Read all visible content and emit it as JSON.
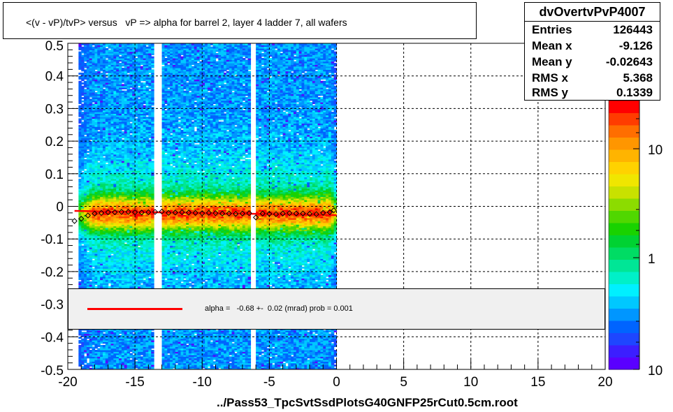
{
  "title": "<(v - vP)/tvP> versus   vP => alpha for barrel 2, layer 4 ladder 7, all wafers",
  "stats": {
    "name": "dvOvertvPvP4007",
    "rows": [
      {
        "label": "Entries",
        "value": "126443"
      },
      {
        "label": "Mean x",
        "value": "-9.126"
      },
      {
        "label": "Mean y",
        "value": "-0.02643"
      },
      {
        "label": "RMS x",
        "value": "5.368"
      },
      {
        "label": "RMS y",
        "value": "0.1339"
      }
    ]
  },
  "legend": {
    "text": "alpha =   -0.68 +-  0.02 (mrad) prob = 0.001",
    "line_color": "#ff0000"
  },
  "xlabel": "../Pass53_TpcSvtSsdPlotsG40GNFP25rCut0.5cm.root",
  "chart_data": {
    "type": "heatmap",
    "title": "<(v - vP)/tvP> versus   vP => alpha for barrel 2, layer 4 ladder 7, all wafers",
    "xlabel": "../Pass53_TpcSvtSsdPlotsG40GNFP25rCut0.5cm.root",
    "ylabel": "",
    "xlim": [
      -20,
      20
    ],
    "ylim": [
      -0.5,
      0.5
    ],
    "x_ticks": [
      "-20",
      "-15",
      "-10",
      "-5",
      "0",
      "5",
      "10",
      "15",
      "20"
    ],
    "y_ticks": [
      "-0.5",
      "-0.4",
      "-0.3",
      "-0.2",
      "-0.1",
      "0",
      "0.1",
      "0.2",
      "0.3",
      "0.4",
      "0.5"
    ],
    "z_scale": "log",
    "z_ticks": [
      "1",
      "10",
      "10"
    ],
    "grid": true,
    "filled_x_range": [
      -19.2,
      0
    ],
    "gap_x_values": [
      -13.3,
      -6.2
    ],
    "band_center_y": -0.02,
    "profile_points": {
      "x": [
        -19.5,
        -19.0,
        -18.5,
        -18.0,
        -17.5,
        -17.0,
        -16.5,
        -16.0,
        -15.5,
        -15.0,
        -14.5,
        -14.0,
        -13.5,
        -13.0,
        -12.5,
        -12.0,
        -11.5,
        -11.0,
        -10.5,
        -10.0,
        -9.5,
        -9.0,
        -8.5,
        -8.0,
        -7.5,
        -7.0,
        -6.5,
        -6.0,
        -5.5,
        -5.0,
        -4.5,
        -4.0,
        -3.5,
        -3.0,
        -2.5,
        -2.0,
        -1.5,
        -1.0,
        -0.5,
        -0.2
      ],
      "y": [
        -0.045,
        -0.038,
        -0.028,
        -0.022,
        -0.02,
        -0.018,
        -0.018,
        -0.017,
        -0.017,
        -0.018,
        -0.019,
        -0.018,
        -0.017,
        -0.016,
        -0.02,
        -0.019,
        -0.018,
        -0.019,
        -0.02,
        -0.021,
        -0.02,
        -0.021,
        -0.022,
        -0.022,
        -0.023,
        -0.022,
        -0.021,
        -0.034,
        -0.022,
        -0.023,
        -0.024,
        -0.022,
        -0.021,
        -0.022,
        -0.022,
        -0.023,
        -0.024,
        -0.02,
        -0.018,
        -0.012
      ]
    },
    "fit_line": {
      "x": [
        -19.5,
        0
      ],
      "y": [
        -0.014,
        -0.027
      ],
      "color": "#ff0000"
    }
  }
}
